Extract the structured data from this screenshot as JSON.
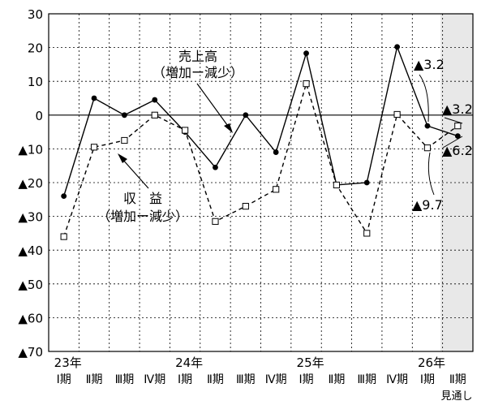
{
  "chart_data": {
    "type": "line",
    "xlabel": "",
    "ylabel": "",
    "ylim": [
      -70,
      30
    ],
    "yticks": [
      30,
      20,
      10,
      0,
      -10,
      -20,
      -30,
      -40,
      -50,
      -60,
      -70
    ],
    "ytick_labels": [
      "30",
      "20",
      "10",
      "0",
      "▲10",
      "▲20",
      "▲30",
      "▲40",
      "▲50",
      "▲60",
      "▲70"
    ],
    "grid": true,
    "projection_shaded_last_category": true,
    "categories": [
      "23年 Ⅰ期",
      "Ⅱ期",
      "Ⅲ期",
      "Ⅳ期",
      "24年 Ⅰ期",
      "Ⅱ期",
      "Ⅲ期",
      "Ⅳ期",
      "25年 Ⅰ期",
      "Ⅱ期",
      "Ⅲ期",
      "Ⅳ期",
      "26年 Ⅰ期",
      "Ⅱ期 見通し"
    ],
    "quarter_labels": [
      "Ⅰ期",
      "Ⅱ期",
      "Ⅲ期",
      "Ⅳ期",
      "Ⅰ期",
      "Ⅱ期",
      "Ⅲ期",
      "Ⅳ期",
      "Ⅰ期",
      "Ⅱ期",
      "Ⅲ期",
      "Ⅳ期",
      "Ⅰ期",
      "Ⅱ期"
    ],
    "year_labels": [
      {
        "index": 0,
        "text": "23年"
      },
      {
        "index": 4,
        "text": "24年"
      },
      {
        "index": 8,
        "text": "25年"
      },
      {
        "index": 12,
        "text": "26年"
      }
    ],
    "forecast_label": "見通し",
    "series": [
      {
        "name": "売上高（増加ー減少）",
        "style": "solid",
        "marker": "filled-circle",
        "color": "#000000",
        "values": [
          -24,
          5,
          0,
          4.5,
          -5,
          -15.5,
          0,
          -11,
          18.3,
          -20.7,
          -20,
          20.2,
          -3.2,
          -6.2
        ]
      },
      {
        "name": "収　益（増加ー減少）",
        "style": "dashed",
        "marker": "open-square",
        "color": "#000000",
        "values": [
          -36,
          -9.5,
          -7.5,
          0,
          -4.5,
          -31.5,
          -27,
          -22,
          9.3,
          -20.7,
          -35,
          0.2,
          -9.7,
          -3.2
        ]
      }
    ],
    "annotations": [
      {
        "id": "sales-label",
        "lines": [
          "売上高",
          "（増加ー減少）"
        ]
      },
      {
        "id": "profit-label",
        "lines": [
          "収　益",
          "（増加ー減少）"
        ]
      },
      {
        "id": "sales-q1-value",
        "text": "▲3.2"
      },
      {
        "id": "profit-q2-value",
        "text": "▲3.2"
      },
      {
        "id": "sales-q2-value",
        "text": "▲6.2"
      },
      {
        "id": "profit-q1-value",
        "text": "▲9.7"
      }
    ]
  }
}
